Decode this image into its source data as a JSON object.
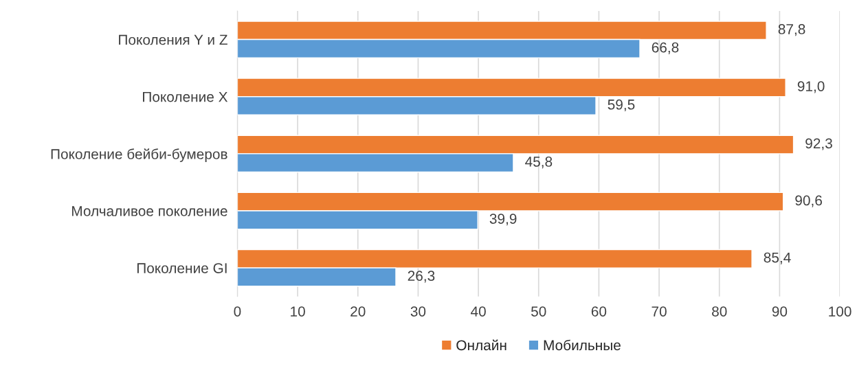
{
  "chart_data": {
    "type": "bar",
    "orientation": "horizontal",
    "categories": [
      "Поколения Y и Z",
      "Поколение X",
      "Поколение бейби-бумеров",
      "Молчаливое поколение",
      "Поколение GI"
    ],
    "series": [
      {
        "name": "Онлайн",
        "color": "#ed7d31",
        "values": [
          87.8,
          91.0,
          92.3,
          90.6,
          85.4
        ],
        "value_labels": [
          "87,8",
          "91,0",
          "92,3",
          "90,6",
          "85,4"
        ]
      },
      {
        "name": "Мобильные",
        "color": "#5b9bd5",
        "values": [
          66.8,
          59.5,
          45.8,
          39.9,
          26.3
        ],
        "value_labels": [
          "66,8",
          "59,5",
          "45,8",
          "39,9",
          "26,3"
        ]
      }
    ],
    "xlim": [
      0,
      100
    ],
    "xticks": [
      0,
      10,
      20,
      30,
      40,
      50,
      60,
      70,
      80,
      90,
      100
    ],
    "grid": "x",
    "legend": "bottom"
  }
}
